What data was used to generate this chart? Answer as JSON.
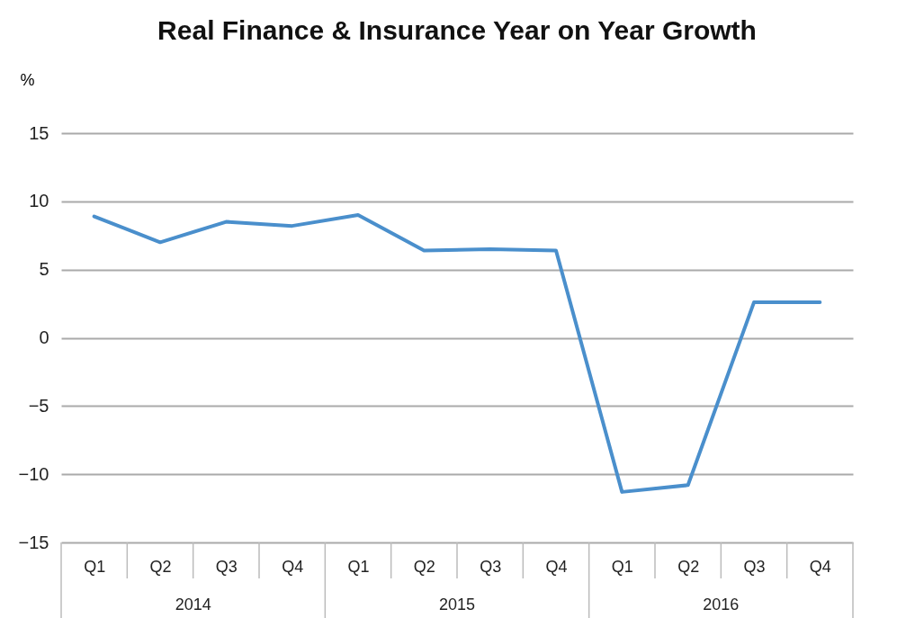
{
  "chart_data": {
    "type": "line",
    "title": "Real Finance & Insurance Year on Year Growth",
    "ylabel": "%",
    "categories": [
      "Q1",
      "Q2",
      "Q3",
      "Q4",
      "Q1",
      "Q2",
      "Q3",
      "Q4",
      "Q1",
      "Q2",
      "Q3",
      "Q4"
    ],
    "series": [
      {
        "color": "#4a8fcc",
        "values": [
          8.9,
          7.0,
          8.5,
          8.2,
          9.0,
          6.4,
          6.5,
          6.4,
          -11.3,
          -10.8,
          2.6,
          2.6
        ]
      }
    ],
    "ylim": [
      -15,
      15
    ],
    "yticks": [
      -15,
      -10,
      -5,
      0,
      5,
      10,
      15
    ],
    "grid": "y",
    "marker": "none",
    "line_style": "solid",
    "annotations": [
      "2014",
      "2015",
      "2016"
    ]
  }
}
